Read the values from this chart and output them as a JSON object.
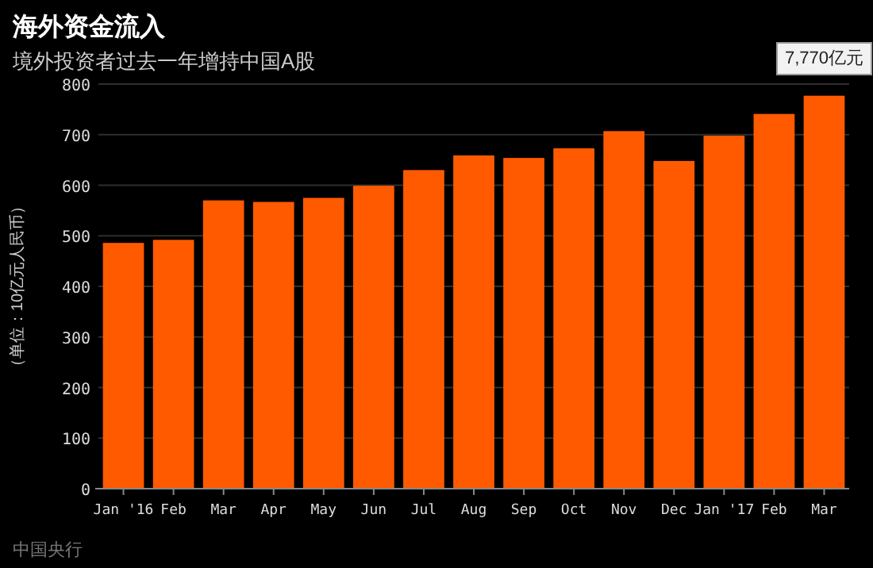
{
  "chart_data": {
    "type": "bar",
    "title": "海外资金流入",
    "subtitle": "境外投资者过去一年增持中国A股",
    "ylabel": "（单位：10亿元人民币）",
    "categories": [
      "Jan '16",
      "Feb",
      "Mar",
      "Apr",
      "May",
      "Jun",
      "Jul",
      "Aug",
      "Sep",
      "Oct",
      "Nov",
      "Dec",
      "Jan '17",
      "Feb",
      "Mar"
    ],
    "values": [
      486,
      492,
      570,
      567,
      575,
      599,
      630,
      659,
      654,
      673,
      707,
      648,
      698,
      741,
      777
    ],
    "color": "#ff5a00",
    "ylim": [
      0,
      800
    ],
    "yticks": [
      0,
      100,
      200,
      300,
      400,
      500,
      600,
      700,
      800
    ],
    "grid": "y",
    "annotations": [
      "7,770亿元",
      "中国央行"
    ]
  }
}
